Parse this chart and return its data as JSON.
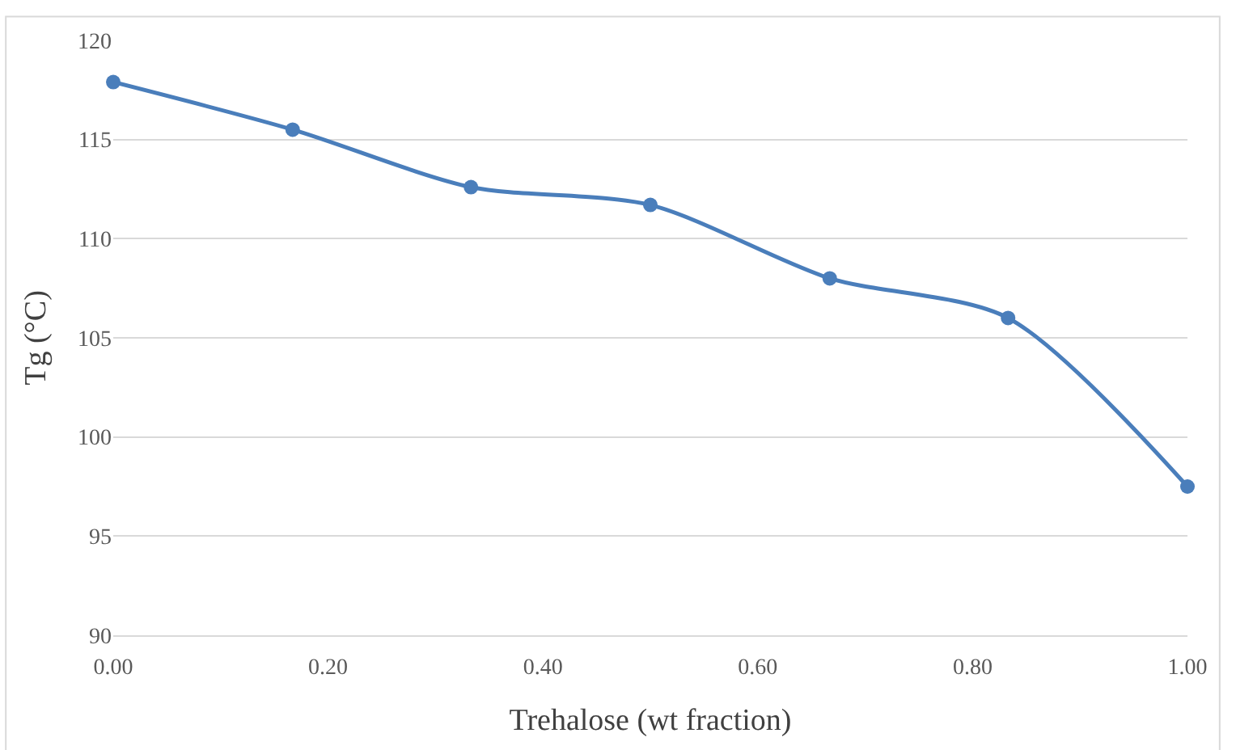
{
  "chart_data": {
    "type": "line",
    "xlabel": "Trehalose (wt fraction)",
    "ylabel": "Tg (°C)",
    "x": [
      0,
      0.167,
      0.333,
      0.5,
      0.667,
      0.833,
      1.0
    ],
    "series": [
      {
        "color": "#4a7ebb",
        "values": [
          117.9,
          115.5,
          112.6,
          111.7,
          108.0,
          106.0,
          97.5
        ]
      }
    ],
    "xlim": [
      0,
      1
    ],
    "xticks": [
      {
        "value": 0,
        "label": "0.00"
      },
      {
        "value": 0.2,
        "label": "0.20"
      },
      {
        "value": 0.4,
        "label": "0.40"
      },
      {
        "value": 0.6,
        "label": "0.60"
      },
      {
        "value": 0.8,
        "label": "0.80"
      },
      {
        "value": 1,
        "label": "1.00"
      }
    ],
    "ylim": [
      90,
      120
    ],
    "yticks": [
      90,
      95,
      100,
      105,
      110,
      115,
      120
    ],
    "grid": "y",
    "marker": "circle",
    "line_style": "solid"
  }
}
